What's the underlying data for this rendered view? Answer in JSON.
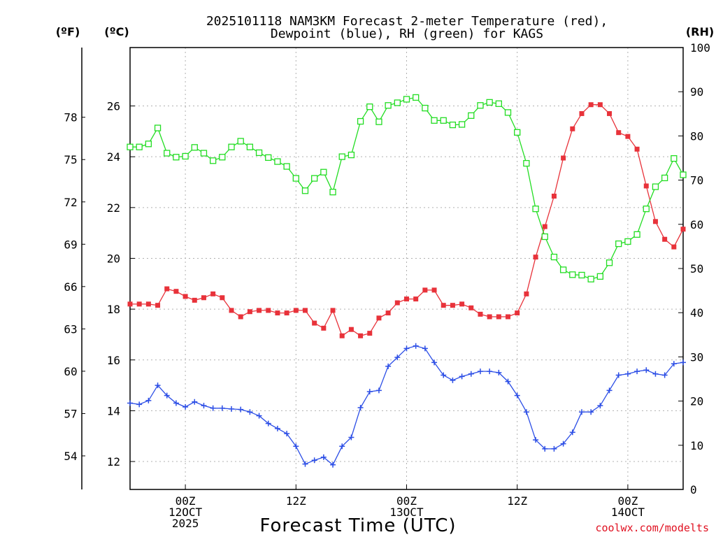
{
  "chart_data": {
    "type": "line",
    "title_line1": "2025101118 NAM3KM Forecast 2-meter Temperature (red),",
    "title_line2": "Dewpoint (blue), RH (green) for KAGS",
    "xlabel": "Forecast Time (UTC)",
    "credit": "coolwx.com/modelts",
    "unit_labels": {
      "fahrenheit": "(ºF)",
      "celsius": "(ºC)",
      "rh": "(RH)"
    },
    "xlim_hours": [
      0,
      60
    ],
    "celsius_range": [
      10.9,
      28.3
    ],
    "rh_range": [
      0,
      100
    ],
    "celsius_ticks": [
      "12",
      "14",
      "16",
      "18",
      "20",
      "22",
      "24",
      "26"
    ],
    "fahrenheit_ticks": [
      "54",
      "57",
      "60",
      "63",
      "66",
      "69",
      "72",
      "75",
      "78"
    ],
    "rh_ticks": [
      "0",
      "10",
      "20",
      "30",
      "40",
      "50",
      "60",
      "70",
      "80",
      "90",
      "100"
    ],
    "x_ticks": [
      {
        "hour": 6,
        "lines": [
          "00Z",
          "12OCT",
          "2025"
        ]
      },
      {
        "hour": 18,
        "lines": [
          "12Z"
        ]
      },
      {
        "hour": 30,
        "lines": [
          "00Z",
          "13OCT"
        ]
      },
      {
        "hour": 42,
        "lines": [
          "12Z"
        ]
      },
      {
        "hour": 54,
        "lines": [
          "00Z",
          "14OCT"
        ]
      }
    ],
    "series": [
      {
        "name": "Temperature",
        "units": "C",
        "color": "#e8323a",
        "marker": "filled-square",
        "values": [
          18.2,
          18.2,
          18.2,
          18.15,
          18.8,
          18.7,
          18.5,
          18.35,
          18.45,
          18.6,
          18.45,
          17.95,
          17.7,
          17.9,
          17.95,
          17.95,
          17.85,
          17.85,
          17.95,
          17.95,
          17.45,
          17.25,
          17.95,
          16.95,
          17.2,
          16.95,
          17.05,
          17.65,
          17.85,
          18.25,
          18.4,
          18.4,
          18.75,
          18.75,
          18.15,
          18.15,
          18.2,
          18.05,
          17.8,
          17.7,
          17.7,
          17.7,
          17.85,
          18.6,
          20.05,
          21.25,
          22.45,
          23.95,
          25.1,
          25.7,
          26.05,
          26.05,
          25.7,
          24.95,
          24.8,
          24.3,
          22.85,
          21.45,
          20.75,
          20.45,
          21.15
        ]
      },
      {
        "name": "Dewpoint",
        "units": "C",
        "color": "#2c4ee6",
        "marker": "plus",
        "values": [
          14.3,
          14.25,
          14.4,
          15.0,
          14.6,
          14.3,
          14.15,
          14.35,
          14.2,
          14.1,
          14.1,
          14.07,
          14.05,
          13.95,
          13.8,
          13.5,
          13.3,
          13.1,
          12.6,
          11.9,
          12.05,
          12.17,
          11.87,
          12.6,
          12.95,
          14.12,
          14.75,
          14.8,
          15.75,
          16.1,
          16.45,
          16.55,
          16.45,
          15.9,
          15.4,
          15.2,
          15.35,
          15.45,
          15.55,
          15.55,
          15.5,
          15.15,
          14.6,
          13.95,
          12.85,
          12.5,
          12.5,
          12.7,
          13.15,
          13.95,
          13.95,
          14.2,
          14.8,
          15.4,
          15.45,
          15.55,
          15.6,
          15.45,
          15.4,
          15.85,
          15.9
        ]
      },
      {
        "name": "RH",
        "units": "%",
        "color": "#22dd22",
        "marker": "open-square",
        "values": [
          77.5,
          77.5,
          78.2,
          81.8,
          76.1,
          75.2,
          75.4,
          77.4,
          76.1,
          74.4,
          75.2,
          77.5,
          78.8,
          77.5,
          76.2,
          75.1,
          74.2,
          73.1,
          70.4,
          67.6,
          70.4,
          71.8,
          67.3,
          75.3,
          75.7,
          83.3,
          86.6,
          83.2,
          86.9,
          87.5,
          88.3,
          88.7,
          86.3,
          83.5,
          83.5,
          82.5,
          82.6,
          84.6,
          86.9,
          87.6,
          87.3,
          85.3,
          80.8,
          73.8,
          63.5,
          57.2,
          52.6,
          49.7,
          48.6,
          48.5,
          47.6,
          48.2,
          51.3,
          55.6,
          56.1,
          57.7,
          63.5,
          68.5,
          70.5,
          74.9,
          71.2
        ]
      }
    ]
  }
}
